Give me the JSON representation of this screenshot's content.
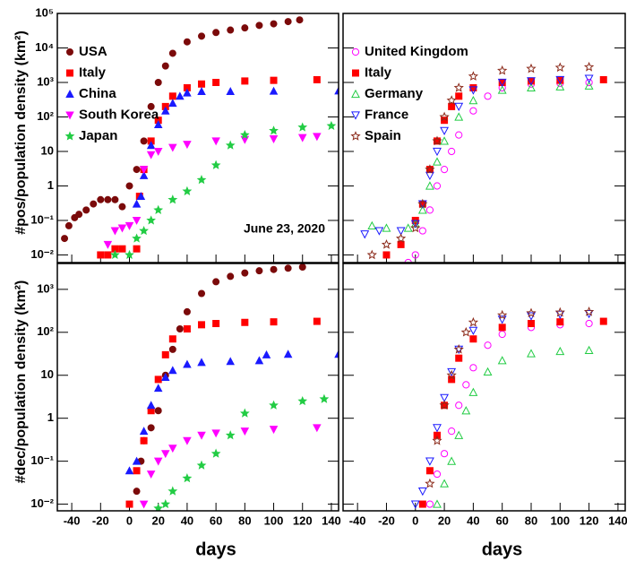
{
  "chart_data": [
    {
      "type": "scatter",
      "log_y": true,
      "ylabel": "#pos/population density (km²)",
      "annotation": "June 23, 2020",
      "legend": "upper left",
      "xtick_labels": false,
      "ytick_labels": true,
      "xlim": [
        -50,
        145
      ],
      "xticks": [
        -40,
        -20,
        0,
        20,
        40,
        60,
        80,
        100,
        120,
        140
      ],
      "ylim": [
        0.006,
        100000
      ],
      "yticks": [
        {
          "value": 100000,
          "label": "10⁵"
        },
        {
          "value": 10000,
          "label": "10⁴"
        },
        {
          "value": 1000,
          "label": "10³"
        },
        {
          "value": 100,
          "label": "10²"
        },
        10,
        1,
        {
          "value": 0.1,
          "label": "10⁻¹"
        },
        {
          "value": 0.01,
          "label": "10⁻²"
        }
      ],
      "series": [
        {
          "name": "USA",
          "color": "#7b0a0a",
          "marker": "circle",
          "filled": true,
          "x": [
            -45,
            -42,
            -38,
            -35,
            -30,
            -25,
            -20,
            -15,
            -10,
            -5,
            0,
            5,
            10,
            15,
            20,
            25,
            30,
            40,
            50,
            60,
            70,
            80,
            90,
            100,
            110,
            118
          ],
          "values": [
            0.03,
            0.07,
            0.12,
            0.15,
            0.2,
            0.3,
            0.4,
            0.4,
            0.4,
            0.25,
            1,
            3,
            20,
            200,
            1000,
            3000,
            7000,
            15000,
            22000,
            28000,
            33000,
            38000,
            45000,
            50000,
            58000,
            65000
          ]
        },
        {
          "name": "Italy",
          "color": "#ff0000",
          "marker": "square",
          "filled": true,
          "x": [
            -20,
            -15,
            -10,
            -5,
            5,
            7,
            10,
            15,
            20,
            25,
            30,
            40,
            50,
            60,
            80,
            100,
            130
          ],
          "values": [
            0.01,
            0.01,
            0.015,
            0.015,
            0.015,
            0.5,
            3,
            20,
            80,
            200,
            400,
            700,
            900,
            1000,
            1100,
            1150,
            1200
          ]
        },
        {
          "name": "China",
          "color": "#1a1aff",
          "marker": "triangle-up",
          "filled": true,
          "x": [
            5,
            8,
            10,
            15,
            20,
            25,
            30,
            35,
            40,
            50,
            70,
            100,
            145
          ],
          "values": [
            0.3,
            0.5,
            2,
            15,
            60,
            150,
            250,
            400,
            500,
            550,
            550,
            560,
            570
          ]
        },
        {
          "name": "South Korea",
          "color": "#ff00ff",
          "marker": "triangle-down",
          "filled": true,
          "x": [
            -15,
            -10,
            -5,
            0,
            5,
            10,
            15,
            20,
            30,
            40,
            60,
            80,
            100,
            120,
            130
          ],
          "values": [
            0.02,
            0.05,
            0.06,
            0.07,
            0.1,
            3,
            8,
            10,
            13,
            16,
            20,
            22,
            23,
            25,
            27
          ]
        },
        {
          "name": "Japan",
          "color": "#22cc44",
          "marker": "star",
          "filled": true,
          "x": [
            -10,
            0,
            5,
            10,
            15,
            20,
            30,
            40,
            50,
            60,
            70,
            80,
            100,
            120,
            140
          ],
          "values": [
            0.01,
            0.01,
            0.03,
            0.05,
            0.1,
            0.2,
            0.4,
            0.7,
            1.5,
            4,
            15,
            30,
            40,
            50,
            55
          ]
        }
      ]
    },
    {
      "type": "scatter",
      "log_y": true,
      "legend": "upper left",
      "xtick_labels": false,
      "ytick_labels": false,
      "xlim": [
        -50,
        145
      ],
      "xticks": [
        -40,
        -20,
        0,
        20,
        40,
        60,
        80,
        100,
        120,
        140
      ],
      "ylim": [
        0.006,
        100000
      ],
      "yticks": [
        100000,
        10000,
        1000,
        100,
        10,
        1,
        0.1,
        0.01
      ],
      "series": [
        {
          "name": "United Kingdom",
          "color": "#ff00ff",
          "marker": "circle",
          "filled": false,
          "x": [
            -5,
            0,
            5,
            10,
            15,
            20,
            25,
            30,
            40,
            50,
            60,
            80,
            100,
            120
          ],
          "values": [
            0.006,
            0.01,
            0.05,
            0.2,
            1,
            3,
            10,
            30,
            150,
            400,
            700,
            900,
            950,
            1000
          ]
        },
        {
          "name": "Italy",
          "color": "#ff0000",
          "marker": "square",
          "filled": true,
          "x": [
            -20,
            -10,
            0,
            5,
            10,
            15,
            20,
            25,
            30,
            40,
            60,
            80,
            100,
            130
          ],
          "values": [
            0.01,
            0.02,
            0.1,
            0.3,
            3,
            20,
            80,
            200,
            400,
            700,
            1000,
            1100,
            1150,
            1200
          ]
        },
        {
          "name": "Germany",
          "color": "#22cc44",
          "marker": "triangle-up",
          "filled": false,
          "x": [
            -30,
            -20,
            -5,
            0,
            5,
            10,
            15,
            20,
            30,
            40,
            60,
            80,
            100,
            120
          ],
          "values": [
            0.07,
            0.06,
            0.06,
            0.08,
            0.2,
            1,
            5,
            20,
            100,
            300,
            600,
            700,
            750,
            800
          ]
        },
        {
          "name": "France",
          "color": "#1a1aff",
          "marker": "triangle-down",
          "filled": false,
          "x": [
            -35,
            -25,
            -10,
            0,
            5,
            10,
            15,
            20,
            30,
            40,
            60,
            80,
            100,
            120
          ],
          "values": [
            0.04,
            0.05,
            0.05,
            0.08,
            0.3,
            2,
            10,
            40,
            200,
            600,
            1000,
            1100,
            1200,
            1300
          ]
        },
        {
          "name": "Spain",
          "color": "#8b2a1a",
          "marker": "star",
          "filled": false,
          "x": [
            -30,
            -20,
            -10,
            0,
            5,
            10,
            15,
            20,
            25,
            30,
            40,
            60,
            80,
            100,
            120
          ],
          "values": [
            0.01,
            0.02,
            0.03,
            0.06,
            0.3,
            3,
            20,
            100,
            300,
            700,
            1500,
            2200,
            2500,
            2700,
            2800
          ]
        }
      ]
    },
    {
      "type": "scatter",
      "log_y": true,
      "ylabel": "#dec/population density (km²)",
      "xlabel": "days",
      "xtick_labels": true,
      "ytick_labels": true,
      "xlim": [
        -50,
        145
      ],
      "xticks": [
        -40,
        -20,
        0,
        20,
        40,
        60,
        80,
        100,
        120,
        140
      ],
      "ylim": [
        0.007,
        4000
      ],
      "yticks": [
        {
          "value": 1000,
          "label": "10³"
        },
        {
          "value": 100,
          "label": "10²"
        },
        10,
        1,
        {
          "value": 0.1,
          "label": "10⁻¹"
        },
        {
          "value": 0.01,
          "label": "10⁻²"
        }
      ],
      "series": [
        {
          "color": "#7b0a0a",
          "marker": "circle",
          "filled": true,
          "x": [
            5,
            8,
            10,
            15,
            20,
            25,
            30,
            35,
            40,
            50,
            60,
            70,
            80,
            90,
            100,
            110,
            120
          ],
          "values": [
            0.02,
            0.1,
            0.3,
            0.6,
            1.5,
            10,
            40,
            120,
            300,
            800,
            1500,
            2000,
            2400,
            2700,
            2900,
            3100,
            3300
          ]
        },
        {
          "color": "#ff0000",
          "marker": "square",
          "filled": true,
          "x": [
            0,
            5,
            10,
            15,
            20,
            25,
            30,
            40,
            50,
            60,
            80,
            100,
            130
          ],
          "values": [
            0.01,
            0.06,
            0.3,
            1.5,
            8,
            30,
            70,
            120,
            150,
            160,
            170,
            175,
            180
          ]
        },
        {
          "color": "#1a1aff",
          "marker": "triangle-up",
          "filled": true,
          "x": [
            0,
            5,
            10,
            15,
            20,
            25,
            30,
            40,
            50,
            70,
            90,
            95,
            110,
            145
          ],
          "values": [
            0.06,
            0.1,
            0.5,
            2,
            5,
            9,
            13,
            18,
            20,
            21,
            22,
            30,
            31,
            31
          ]
        },
        {
          "color": "#ff00ff",
          "marker": "triangle-down",
          "filled": true,
          "x": [
            10,
            15,
            20,
            25,
            30,
            40,
            50,
            60,
            80,
            100,
            130
          ],
          "values": [
            0.01,
            0.05,
            0.1,
            0.15,
            0.2,
            0.3,
            0.4,
            0.45,
            0.5,
            0.55,
            0.6
          ]
        },
        {
          "color": "#22cc44",
          "marker": "star",
          "filled": true,
          "x": [
            20,
            25,
            30,
            40,
            50,
            60,
            70,
            80,
            100,
            120,
            135
          ],
          "values": [
            0.008,
            0.01,
            0.02,
            0.04,
            0.08,
            0.15,
            0.4,
            1.3,
            2,
            2.5,
            2.8
          ]
        }
      ]
    },
    {
      "type": "scatter",
      "log_y": true,
      "xlabel": "days",
      "xtick_labels": true,
      "ytick_labels": false,
      "xlim": [
        -50,
        145
      ],
      "xticks": [
        -40,
        -20,
        0,
        20,
        40,
        60,
        80,
        100,
        120,
        140
      ],
      "ylim": [
        0.007,
        4000
      ],
      "yticks": [
        1000,
        100,
        10,
        1,
        0.1,
        0.01
      ],
      "series": [
        {
          "color": "#ff00ff",
          "marker": "circle",
          "filled": false,
          "x": [
            10,
            15,
            20,
            25,
            30,
            35,
            40,
            50,
            60,
            80,
            100,
            120
          ],
          "values": [
            0.01,
            0.05,
            0.15,
            0.5,
            2,
            6,
            15,
            50,
            90,
            130,
            150,
            160
          ]
        },
        {
          "color": "#ff0000",
          "marker": "square",
          "filled": true,
          "x": [
            5,
            10,
            15,
            20,
            25,
            30,
            40,
            60,
            80,
            100,
            130
          ],
          "values": [
            0.01,
            0.06,
            0.4,
            2,
            8,
            25,
            70,
            130,
            160,
            175,
            180
          ]
        },
        {
          "color": "#22cc44",
          "marker": "triangle-up",
          "filled": false,
          "x": [
            15,
            20,
            25,
            30,
            35,
            40,
            50,
            60,
            80,
            100,
            120
          ],
          "values": [
            0.01,
            0.03,
            0.1,
            0.4,
            1.5,
            4,
            12,
            22,
            32,
            36,
            38
          ]
        },
        {
          "color": "#1a1aff",
          "marker": "triangle-down",
          "filled": false,
          "x": [
            0,
            5,
            10,
            15,
            20,
            25,
            30,
            40,
            60,
            80,
            100,
            120
          ],
          "values": [
            0.01,
            0.02,
            0.1,
            0.6,
            3,
            12,
            40,
            110,
            200,
            240,
            260,
            270
          ]
        },
        {
          "color": "#8b2a1a",
          "marker": "star",
          "filled": false,
          "x": [
            10,
            15,
            20,
            25,
            30,
            35,
            40,
            60,
            80,
            100,
            120
          ],
          "values": [
            0.03,
            0.3,
            2,
            10,
            40,
            100,
            170,
            250,
            280,
            290,
            300
          ]
        }
      ]
    }
  ]
}
